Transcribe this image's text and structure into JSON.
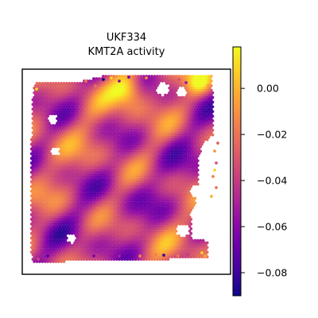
{
  "chart_data": {
    "type": "heatmap",
    "title": "UKF334",
    "subtitle": "KMT2A activity",
    "xlabel": "",
    "ylabel": "",
    "colormap": "plasma",
    "color_range": [
      -0.09,
      0.018
    ],
    "colorbar": {
      "ticks": [
        0.0,
        -0.02,
        -0.04,
        -0.06,
        -0.08
      ],
      "tick_labels": [
        "0.00",
        "−0.02",
        "−0.04",
        "−0.06",
        "−0.08"
      ]
    },
    "axes": {
      "x_ticks": false,
      "y_ticks": false,
      "frame": true
    }
  }
}
